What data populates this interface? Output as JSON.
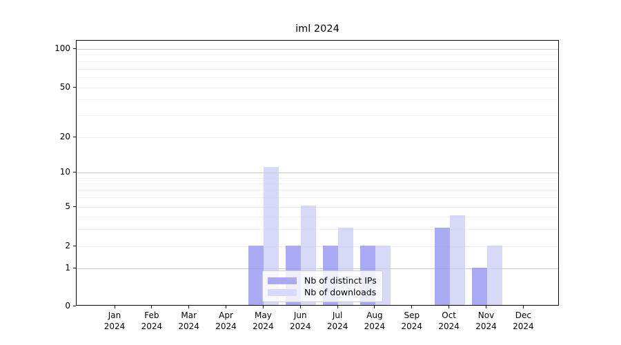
{
  "title": "iml 2024",
  "chart_data": {
    "type": "bar",
    "title": "iml 2024",
    "categories": [
      {
        "month": "Jan",
        "year": "2024"
      },
      {
        "month": "Feb",
        "year": "2024"
      },
      {
        "month": "Mar",
        "year": "2024"
      },
      {
        "month": "Apr",
        "year": "2024"
      },
      {
        "month": "May",
        "year": "2024"
      },
      {
        "month": "Jun",
        "year": "2024"
      },
      {
        "month": "Jul",
        "year": "2024"
      },
      {
        "month": "Aug",
        "year": "2024"
      },
      {
        "month": "Sep",
        "year": "2024"
      },
      {
        "month": "Oct",
        "year": "2024"
      },
      {
        "month": "Nov",
        "year": "2024"
      },
      {
        "month": "Dec",
        "year": "2024"
      }
    ],
    "series": [
      {
        "name": "Nb of distinct IPs",
        "color": "#aaaaf1",
        "fill": "rgba(151,151,243,0.82)",
        "values": [
          0,
          0,
          0,
          0,
          2,
          2,
          2,
          2,
          0,
          3,
          1,
          0
        ]
      },
      {
        "name": "Nb of downloads",
        "color": "#d8d8f8",
        "fill": "rgba(201,201,246,0.72)",
        "values": [
          0,
          0,
          0,
          0,
          11,
          5,
          3,
          2,
          0,
          4,
          2,
          0
        ]
      }
    ],
    "y_ticks": [
      0,
      1,
      2,
      5,
      10,
      20,
      50,
      100
    ],
    "y_minor_ticks": [
      3,
      4,
      6,
      7,
      8,
      9,
      30,
      40,
      60,
      70,
      80,
      90
    ],
    "yscale": "symlog",
    "ylim": [
      0,
      100
    ],
    "grid": true,
    "legend_position": "lower center"
  },
  "colors": {
    "grid_major": "#c8c8c8",
    "grid_mid": "#ececec",
    "grid_minor": "#f1f1f1",
    "axis": "#000000",
    "legend_border": "#cccccc",
    "background": "#ffffff"
  }
}
